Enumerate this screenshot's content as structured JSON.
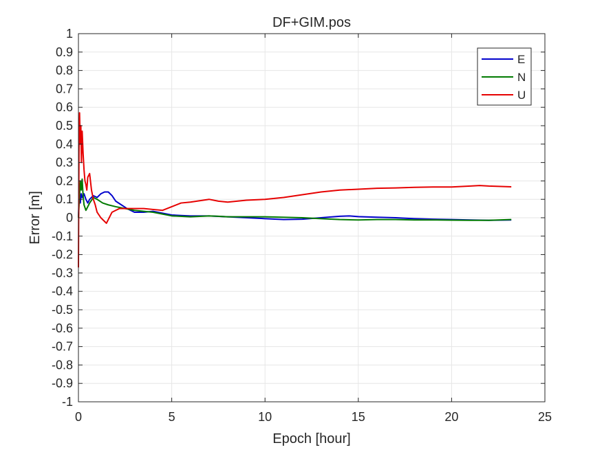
{
  "chart_data": {
    "type": "line",
    "title": "DF+GIM.pos",
    "xlabel": "Epoch [hour]",
    "ylabel": "Error [m]",
    "xlim": [
      0,
      25
    ],
    "ylim": [
      -1,
      1
    ],
    "xticks": [
      0,
      5,
      10,
      15,
      20,
      25
    ],
    "xtick_labels": [
      "0",
      "5",
      "10",
      "15",
      "20",
      "25"
    ],
    "yticks": [
      1,
      0.9,
      0.8,
      0.7,
      0.6,
      0.5,
      0.4,
      0.3,
      0.2,
      0.1,
      0,
      -0.1,
      -0.2,
      -0.3,
      -0.4,
      -0.5,
      -0.6,
      -0.7,
      -0.8,
      -0.9,
      -1
    ],
    "ytick_labels": [
      "1",
      "0.9",
      "0.8",
      "0.7",
      "0.6",
      "0.5",
      "0.4",
      "0.3",
      "0.2",
      "0.1",
      "0",
      "-0.1",
      "-0.2",
      "-0.3",
      "-0.4",
      "-0.5",
      "-0.6",
      "-0.7",
      "-0.8",
      "-0.9",
      "-1"
    ],
    "grid": true,
    "legend_position": "top-right",
    "series": [
      {
        "name": "E",
        "color": "#0000cc",
        "x": [
          0,
          0.05,
          0.1,
          0.15,
          0.2,
          0.3,
          0.4,
          0.5,
          0.6,
          0.8,
          1.0,
          1.2,
          1.4,
          1.6,
          1.8,
          2.0,
          2.3,
          2.6,
          3.0,
          3.5,
          4.0,
          4.5,
          5.0,
          5.5,
          6.0,
          7.0,
          8.0,
          9.0,
          10.0,
          11.0,
          12.0,
          13.0,
          14.0,
          14.5,
          15.0,
          16.0,
          17.0,
          18.0,
          19.0,
          20.0,
          21.0,
          22.0,
          23.2
        ],
        "y": [
          0,
          0.15,
          0.08,
          0.13,
          0.11,
          0.13,
          0.1,
          0.08,
          0.1,
          0.12,
          0.11,
          0.13,
          0.14,
          0.14,
          0.12,
          0.09,
          0.07,
          0.05,
          0.03,
          0.03,
          0.035,
          0.025,
          0.015,
          0.012,
          0.01,
          0.01,
          0.005,
          0.0,
          -0.005,
          -0.01,
          -0.008,
          0.0,
          0.008,
          0.01,
          0.006,
          0.003,
          0.0,
          -0.005,
          -0.008,
          -0.01,
          -0.012,
          -0.014,
          -0.012
        ]
      },
      {
        "name": "N",
        "color": "#007a00",
        "x": [
          0,
          0.05,
          0.1,
          0.15,
          0.2,
          0.25,
          0.3,
          0.4,
          0.5,
          0.6,
          0.8,
          1.0,
          1.3,
          1.6,
          2.0,
          2.5,
          3.0,
          3.5,
          4.0,
          4.5,
          5.0,
          6.0,
          7.0,
          7.5,
          8.0,
          10.0,
          12.0,
          13.0,
          14.0,
          15.0,
          16.0,
          17.0,
          18.0,
          19.0,
          20.0,
          21.0,
          22.0,
          23.2
        ],
        "y": [
          0,
          0.1,
          0.2,
          0.15,
          0.21,
          0.12,
          0.07,
          0.04,
          0.06,
          0.08,
          0.11,
          0.1,
          0.08,
          0.07,
          0.06,
          0.05,
          0.04,
          0.035,
          0.03,
          0.02,
          0.01,
          0.005,
          0.01,
          0.008,
          0.005,
          0.005,
          0.0,
          -0.005,
          -0.01,
          -0.012,
          -0.01,
          -0.01,
          -0.012,
          -0.012,
          -0.013,
          -0.014,
          -0.014,
          -0.01
        ]
      },
      {
        "name": "U",
        "color": "#e60000",
        "x": [
          0,
          0.03,
          0.06,
          0.1,
          0.13,
          0.16,
          0.2,
          0.25,
          0.3,
          0.35,
          0.4,
          0.45,
          0.5,
          0.6,
          0.7,
          0.8,
          0.9,
          1.0,
          1.2,
          1.4,
          1.5,
          1.6,
          1.8,
          2.0,
          2.2,
          2.5,
          3.0,
          3.5,
          4.0,
          4.5,
          5.0,
          5.5,
          6.0,
          7.0,
          7.5,
          8.0,
          9.0,
          10.0,
          11.0,
          12.0,
          13.0,
          14.0,
          15.0,
          16.0,
          17.0,
          18.0,
          19.0,
          20.0,
          21.0,
          21.5,
          22.0,
          23.2
        ],
        "y": [
          -0.27,
          0.35,
          0.57,
          0.4,
          0.5,
          0.3,
          0.47,
          0.35,
          0.26,
          0.2,
          0.18,
          0.15,
          0.22,
          0.24,
          0.15,
          0.1,
          0.07,
          0.03,
          0.0,
          -0.02,
          -0.03,
          -0.01,
          0.03,
          0.04,
          0.05,
          0.05,
          0.05,
          0.05,
          0.045,
          0.04,
          0.06,
          0.08,
          0.085,
          0.1,
          0.09,
          0.085,
          0.095,
          0.1,
          0.11,
          0.125,
          0.14,
          0.15,
          0.155,
          0.16,
          0.162,
          0.165,
          0.167,
          0.167,
          0.172,
          0.175,
          0.172,
          0.168
        ]
      }
    ]
  }
}
